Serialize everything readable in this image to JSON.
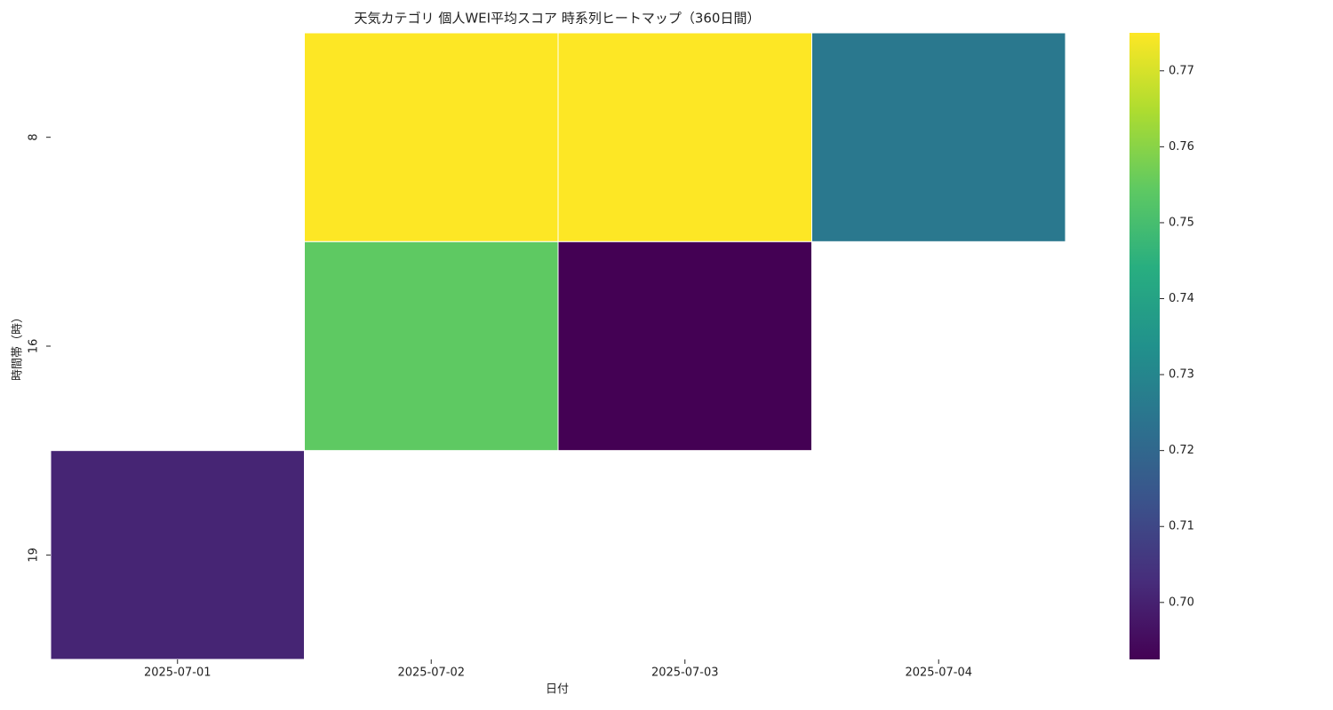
{
  "chart_data": {
    "type": "heatmap",
    "title": "天気カテゴリ 個人WEI平均スコア 時系列ヒートマップ（360日間）",
    "x_label": "日付",
    "y_label": "時間帯（時）",
    "x": [
      "2025-07-01",
      "2025-07-02",
      "2025-07-03",
      "2025-07-04"
    ],
    "y": [
      "8",
      "16",
      "19"
    ],
    "values": [
      [
        null,
        0.775,
        0.775,
        0.7255
      ],
      [
        null,
        0.7544,
        0.6925,
        null
      ],
      [
        0.701,
        null,
        null,
        null
      ]
    ],
    "colormap": "viridis",
    "clim": [
      0.6925,
      0.775
    ],
    "cticks": [
      {
        "value": 0.7,
        "label": "0.70"
      },
      0.71,
      0.72,
      0.73,
      0.74,
      0.75,
      0.76,
      0.77
    ]
  }
}
